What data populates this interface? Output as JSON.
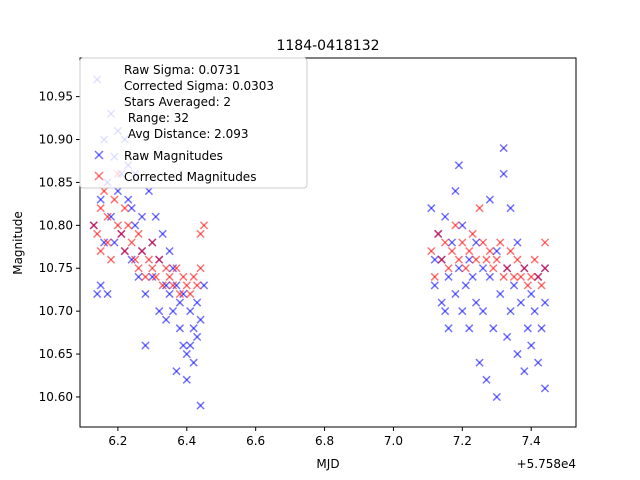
{
  "chart_data": {
    "type": "scatter",
    "title": "1184-0418132",
    "xlabel": "MJD",
    "ylabel": "Magnitude",
    "x_offset_label": "+5.758e4",
    "xlim": [
      6.09,
      7.53
    ],
    "ylim": [
      10.565,
      10.995
    ],
    "xticks": [
      6.2,
      6.4,
      6.6,
      6.8,
      7.0,
      7.2,
      7.4
    ],
    "xtick_labels": [
      "6.2",
      "6.4",
      "6.6",
      "6.8",
      "7.0",
      "7.2",
      "7.4"
    ],
    "yticks": [
      10.6,
      10.65,
      10.7,
      10.75,
      10.8,
      10.85,
      10.9,
      10.95
    ],
    "ytick_labels": [
      "10.60",
      "10.65",
      "10.70",
      "10.75",
      "10.80",
      "10.85",
      "10.90",
      "10.95"
    ],
    "legend_location": "top-left",
    "legend_stats": [
      "Raw Sigma: 0.0731",
      "Corrected Sigma: 0.0303",
      "Stars Averaged: 2",
      " Range: 32",
      " Avg Distance: 2.093"
    ],
    "series": [
      {
        "name": "Raw Magnitudes",
        "color": "#0000ff",
        "marker": "x",
        "points": [
          [
            6.13,
            10.8
          ],
          [
            6.14,
            10.97
          ],
          [
            6.14,
            10.72
          ],
          [
            6.15,
            10.83
          ],
          [
            6.15,
            10.73
          ],
          [
            6.16,
            10.9
          ],
          [
            6.16,
            10.78
          ],
          [
            6.17,
            10.72
          ],
          [
            6.17,
            10.85
          ],
          [
            6.18,
            10.81
          ],
          [
            6.18,
            10.93
          ],
          [
            6.19,
            10.88
          ],
          [
            6.19,
            10.78
          ],
          [
            6.2,
            10.91
          ],
          [
            6.2,
            10.84
          ],
          [
            6.21,
            10.86
          ],
          [
            6.21,
            10.79
          ],
          [
            6.22,
            10.9
          ],
          [
            6.22,
            10.77
          ],
          [
            6.23,
            10.83
          ],
          [
            6.23,
            10.87
          ],
          [
            6.24,
            10.82
          ],
          [
            6.24,
            10.76
          ],
          [
            6.25,
            10.86
          ],
          [
            6.25,
            10.8
          ],
          [
            6.26,
            10.74
          ],
          [
            6.27,
            10.81
          ],
          [
            6.27,
            10.77
          ],
          [
            6.28,
            10.72
          ],
          [
            6.28,
            10.66
          ],
          [
            6.29,
            10.84
          ],
          [
            6.3,
            10.78
          ],
          [
            6.3,
            10.74
          ],
          [
            6.31,
            10.81
          ],
          [
            6.32,
            10.76
          ],
          [
            6.32,
            10.7
          ],
          [
            6.33,
            10.79
          ],
          [
            6.34,
            10.73
          ],
          [
            6.34,
            10.69
          ],
          [
            6.35,
            10.77
          ],
          [
            6.35,
            10.72
          ],
          [
            6.36,
            10.75
          ],
          [
            6.36,
            10.7
          ],
          [
            6.37,
            10.73
          ],
          [
            6.37,
            10.63
          ],
          [
            6.38,
            10.71
          ],
          [
            6.38,
            10.68
          ],
          [
            6.39,
            10.66
          ],
          [
            6.39,
            10.72
          ],
          [
            6.4,
            10.65
          ],
          [
            6.4,
            10.62
          ],
          [
            6.41,
            10.7
          ],
          [
            6.41,
            10.66
          ],
          [
            6.42,
            10.68
          ],
          [
            6.42,
            10.64
          ],
          [
            6.43,
            10.67
          ],
          [
            6.43,
            10.71
          ],
          [
            6.44,
            10.59
          ],
          [
            6.44,
            10.69
          ],
          [
            6.45,
            10.73
          ],
          [
            7.11,
            10.82
          ],
          [
            7.12,
            10.76
          ],
          [
            7.12,
            10.73
          ],
          [
            7.13,
            10.79
          ],
          [
            7.14,
            10.71
          ],
          [
            7.14,
            10.76
          ],
          [
            7.15,
            10.81
          ],
          [
            7.15,
            10.7
          ],
          [
            7.16,
            10.74
          ],
          [
            7.16,
            10.68
          ],
          [
            7.17,
            10.78
          ],
          [
            7.18,
            10.72
          ],
          [
            7.18,
            10.84
          ],
          [
            7.19,
            10.87
          ],
          [
            7.19,
            10.75
          ],
          [
            7.2,
            10.7
          ],
          [
            7.2,
            10.8
          ],
          [
            7.21,
            10.73
          ],
          [
            7.22,
            10.76
          ],
          [
            7.22,
            10.68
          ],
          [
            7.23,
            10.74
          ],
          [
            7.24,
            10.78
          ],
          [
            7.24,
            10.71
          ],
          [
            7.25,
            10.64
          ],
          [
            7.26,
            10.75
          ],
          [
            7.26,
            10.7
          ],
          [
            7.27,
            10.62
          ],
          [
            7.28,
            10.83
          ],
          [
            7.28,
            10.74
          ],
          [
            7.29,
            10.68
          ],
          [
            7.3,
            10.6
          ],
          [
            7.3,
            10.77
          ],
          [
            7.31,
            10.72
          ],
          [
            7.32,
            10.89
          ],
          [
            7.32,
            10.86
          ],
          [
            7.33,
            10.75
          ],
          [
            7.33,
            10.67
          ],
          [
            7.34,
            10.82
          ],
          [
            7.34,
            10.7
          ],
          [
            7.35,
            10.73
          ],
          [
            7.36,
            10.78
          ],
          [
            7.36,
            10.65
          ],
          [
            7.37,
            10.71
          ],
          [
            7.38,
            10.63
          ],
          [
            7.38,
            10.75
          ],
          [
            7.39,
            10.68
          ],
          [
            7.4,
            10.72
          ],
          [
            7.4,
            10.66
          ],
          [
            7.41,
            10.7
          ],
          [
            7.42,
            10.64
          ],
          [
            7.42,
            10.74
          ],
          [
            7.43,
            10.68
          ],
          [
            7.44,
            10.61
          ],
          [
            7.44,
            10.71
          ],
          [
            7.44,
            10.75
          ]
        ]
      },
      {
        "name": "Corrected Magnitudes",
        "color": "#ff0000",
        "marker": "x",
        "points": [
          [
            6.13,
            10.8
          ],
          [
            6.14,
            10.79
          ],
          [
            6.15,
            10.82
          ],
          [
            6.15,
            10.77
          ],
          [
            6.16,
            10.84
          ],
          [
            6.17,
            10.78
          ],
          [
            6.17,
            10.81
          ],
          [
            6.18,
            10.76
          ],
          [
            6.19,
            10.83
          ],
          [
            6.2,
            10.8
          ],
          [
            6.2,
            10.86
          ],
          [
            6.21,
            10.79
          ],
          [
            6.22,
            10.82
          ],
          [
            6.22,
            10.77
          ],
          [
            6.23,
            10.8
          ],
          [
            6.24,
            10.78
          ],
          [
            6.25,
            10.76
          ],
          [
            6.26,
            10.79
          ],
          [
            6.26,
            10.75
          ],
          [
            6.27,
            10.77
          ],
          [
            6.28,
            10.74
          ],
          [
            6.29,
            10.76
          ],
          [
            6.3,
            10.75
          ],
          [
            6.3,
            10.78
          ],
          [
            6.31,
            10.74
          ],
          [
            6.32,
            10.76
          ],
          [
            6.33,
            10.73
          ],
          [
            6.34,
            10.75
          ],
          [
            6.35,
            10.74
          ],
          [
            6.36,
            10.73
          ],
          [
            6.37,
            10.75
          ],
          [
            6.38,
            10.72
          ],
          [
            6.39,
            10.74
          ],
          [
            6.4,
            10.73
          ],
          [
            6.41,
            10.72
          ],
          [
            6.42,
            10.74
          ],
          [
            6.43,
            10.73
          ],
          [
            6.44,
            10.75
          ],
          [
            6.44,
            10.79
          ],
          [
            6.45,
            10.8
          ],
          [
            7.11,
            10.77
          ],
          [
            7.12,
            10.74
          ],
          [
            7.13,
            10.79
          ],
          [
            7.14,
            10.76
          ],
          [
            7.15,
            10.78
          ],
          [
            7.16,
            10.75
          ],
          [
            7.17,
            10.77
          ],
          [
            7.18,
            10.8
          ],
          [
            7.19,
            10.76
          ],
          [
            7.2,
            10.78
          ],
          [
            7.21,
            10.75
          ],
          [
            7.22,
            10.77
          ],
          [
            7.23,
            10.79
          ],
          [
            7.24,
            10.76
          ],
          [
            7.25,
            10.82
          ],
          [
            7.26,
            10.78
          ],
          [
            7.27,
            10.76
          ],
          [
            7.28,
            10.77
          ],
          [
            7.29,
            10.75
          ],
          [
            7.3,
            10.76
          ],
          [
            7.31,
            10.78
          ],
          [
            7.32,
            10.74
          ],
          [
            7.33,
            10.75
          ],
          [
            7.34,
            10.77
          ],
          [
            7.35,
            10.74
          ],
          [
            7.36,
            10.76
          ],
          [
            7.37,
            10.74
          ],
          [
            7.38,
            10.75
          ],
          [
            7.39,
            10.73
          ],
          [
            7.4,
            10.74
          ],
          [
            7.41,
            10.76
          ],
          [
            7.42,
            10.74
          ],
          [
            7.43,
            10.73
          ],
          [
            7.44,
            10.75
          ],
          [
            7.44,
            10.78
          ]
        ]
      }
    ]
  }
}
